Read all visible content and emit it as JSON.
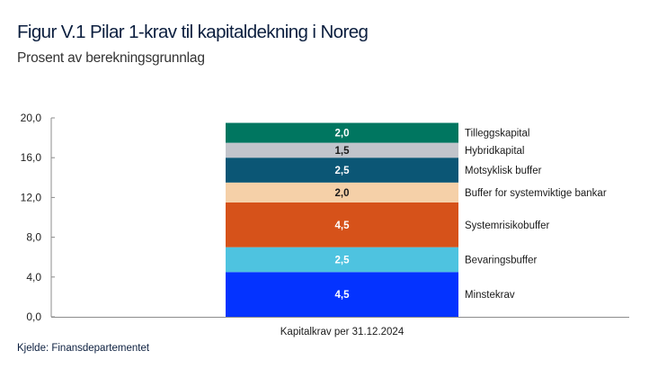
{
  "header": {
    "title": "Figur V.1 Pilar 1-krav til kapitaldekning i Noreg",
    "subtitle": "Prosent av berekningsgrunnlag"
  },
  "footer": {
    "source": "Kjelde: Finansdepartementet"
  },
  "chart_data": {
    "type": "bar",
    "stacked": true,
    "title": "Figur V.1 Pilar 1-krav til kapitaldekning i Noreg",
    "subtitle": "Prosent av berekningsgrunnlag",
    "xlabel": "",
    "ylabel": "Prosent av berekningsgrunnlag",
    "categories": [
      "Kapitalkrav per 31.12.2024"
    ],
    "ylim": [
      0,
      20
    ],
    "yticks": [
      0,
      4,
      8,
      12,
      16,
      20
    ],
    "ytick_labels": [
      "0,0",
      "4,0",
      "8,0",
      "12,0",
      "16,0",
      "20,0"
    ],
    "grid": false,
    "legend_placement": "right-of-bar",
    "series": [
      {
        "name": "Minstekrav",
        "values": [
          4.5
        ],
        "label": "4,5",
        "color": "#0433ff",
        "label_color": "#ffffff"
      },
      {
        "name": "Bevaringsbuffer",
        "values": [
          2.5
        ],
        "label": "2,5",
        "color": "#4ec3e0",
        "label_color": "#ffffff"
      },
      {
        "name": "Systemrisikobuffer",
        "values": [
          4.5
        ],
        "label": "4,5",
        "color": "#d6521a",
        "label_color": "#ffffff"
      },
      {
        "name": "Buffer for systemviktige bankar",
        "values": [
          2.0
        ],
        "label": "2,0",
        "color": "#f5d0a8",
        "label_color": "#1a1a1a"
      },
      {
        "name": "Motsyklisk buffer",
        "values": [
          2.5
        ],
        "label": "2,5",
        "color": "#0b5675",
        "label_color": "#ffffff"
      },
      {
        "name": "Hybridkapital",
        "values": [
          1.5
        ],
        "label": "1,5",
        "color": "#c1c4cb",
        "label_color": "#1a1a1a"
      },
      {
        "name": "Tilleggskapital",
        "values": [
          2.0
        ],
        "label": "2,0",
        "color": "#007660",
        "label_color": "#ffffff"
      }
    ]
  }
}
